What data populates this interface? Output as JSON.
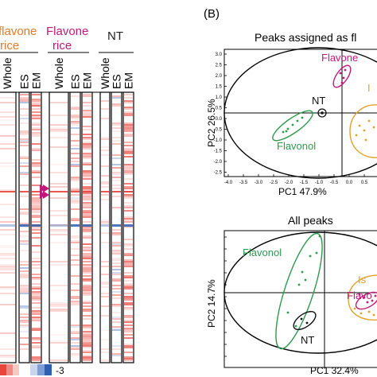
{
  "panel_left": {
    "groups": [
      {
        "label_line1": "flavone",
        "label_line2": "rice",
        "color": "#e07a2a"
      },
      {
        "label_line1": "Flavone",
        "label_line2": "rice",
        "color": "#c2187a"
      },
      {
        "label_line1": "NT",
        "label_line2": "",
        "color": "#222222"
      }
    ],
    "columns": [
      "Whole",
      "ES",
      "EM",
      "Whole",
      "ES",
      "EM",
      "Whole",
      "ES",
      "EM"
    ],
    "legend_min": "-3"
  },
  "panel_b": {
    "letter": "(B)",
    "top_plot": {
      "title": "Peaks assigned as fl",
      "xlabel": "PC1 47.9%",
      "ylabel": "PC2  26.5%",
      "xticks": [
        "-4.0",
        "-3.5",
        "-3.0",
        "-2.5",
        "-2.0",
        "-1.5",
        "-1.0",
        "-0.5",
        "0.0",
        "0.5",
        "1.0"
      ],
      "yticks": [
        "3.0",
        "2.5",
        "2.0",
        "1.5",
        "1.0",
        "0.5",
        "0.0",
        "-0.5",
        "-1.0",
        "-1.5",
        "-2.0",
        "-2.5"
      ],
      "labels": {
        "flavone": "Flavone",
        "flavonol": "Flavonol",
        "nt": "NT",
        "iso": "I"
      }
    },
    "bottom_plot": {
      "title": "All peaks",
      "xlabel": "PC1 32.4%",
      "ylabel": "PC2  14.7%",
      "labels": {
        "flavonol": "Flavonol",
        "nt": "NT",
        "iso": "Is",
        "flavone": "Flavo"
      }
    }
  },
  "colors": {
    "flavone": "#c2187a",
    "flavonol": "#2e9a4e",
    "nt": "#111111",
    "iso": "#e3a12a",
    "heat_red": "#e8453c",
    "heat_blue": "#2f5fb3"
  }
}
